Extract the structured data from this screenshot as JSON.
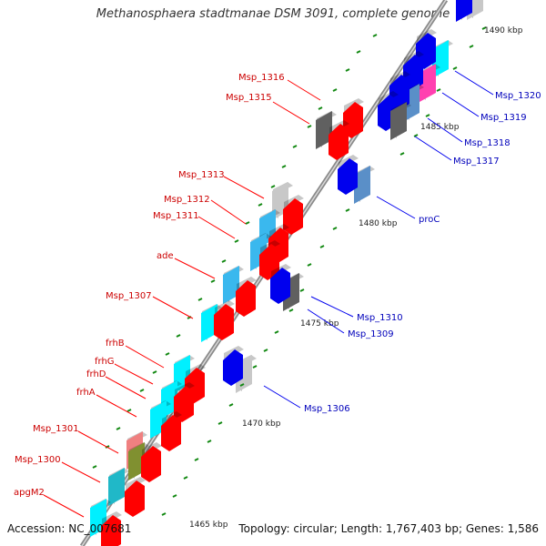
{
  "title": "Methanosphaera stadtmanae DSM 3091, complete genome",
  "footer": {
    "accession": "Accession: NC_007681",
    "stats": "Topology: circular; Length: 1,767,403 bp; Genes: 1,586"
  },
  "colors": {
    "forward_gene": "#ff0000",
    "reverse_gene": "#0000ee",
    "cyan_gene": "#00f0ff",
    "teal_gene": "#20b8c8",
    "light_blue_gene": "#3ab8ee",
    "steel_gene": "#5a8fc8",
    "gray_gene": "#606060",
    "light_gray_gene": "#c8c8c8",
    "magenta_gene": "#ff40b0",
    "pink_gene": "#f08080",
    "olive_gene": "#809030",
    "forward_label": "#cc0000",
    "reverse_label": "#0000bb",
    "tick": "#118811",
    "backbone": "#8a8a8a"
  },
  "scale_labels": [
    "1490 kbp",
    "1485 kbp",
    "1480 kbp",
    "1475 kbp",
    "1470 kbp",
    "1465 kbp"
  ],
  "forward_labels": [
    "Msp_1316",
    "Msp_1315",
    "Msp_1313",
    "Msp_1312",
    "Msp_1311",
    "ade",
    "Msp_1307",
    "frhB",
    "frhG",
    "frhD",
    "frhA",
    "Msp_1301",
    "Msp_1300",
    "apgM2"
  ],
  "reverse_labels": [
    "Msp_1320",
    "Msp_1319",
    "Msp_1318",
    "Msp_1317",
    "proC",
    "Msp_1310",
    "Msp_1309",
    "Msp_1306"
  ]
}
